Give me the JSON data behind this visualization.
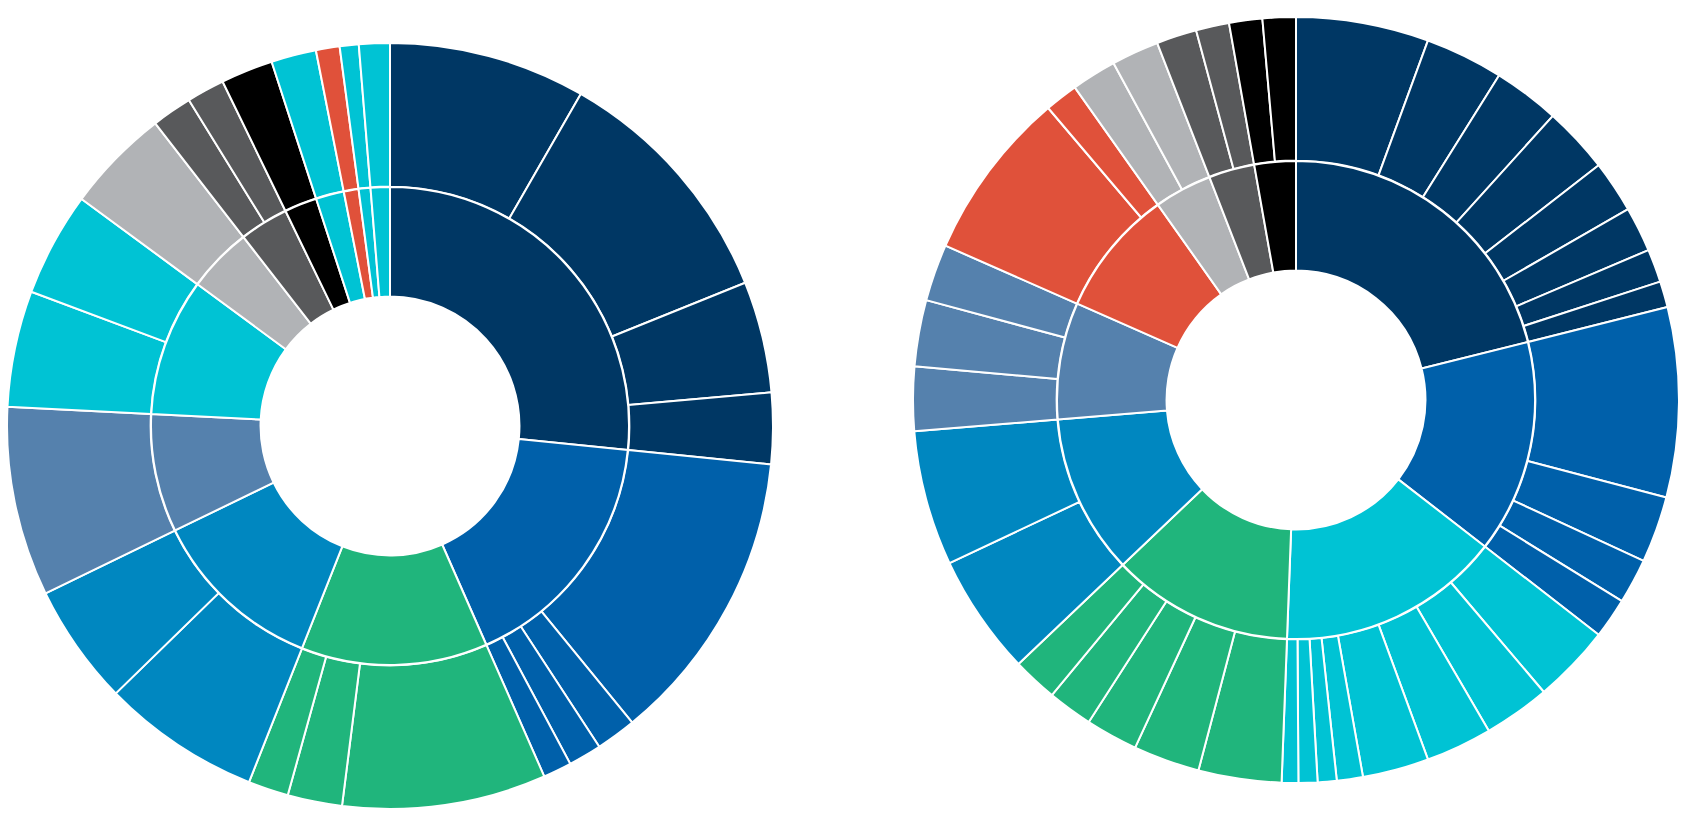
{
  "chart_data": [
    {
      "type": "donut",
      "legend": false,
      "categories": [
        null,
        null,
        null,
        null,
        null,
        null,
        null,
        null,
        null,
        null,
        null,
        null,
        null
      ],
      "values": [
        26.6,
        16.8,
        12.6,
        11.8,
        8.0,
        9.3,
        4.4,
        3.3,
        2.2,
        1.9,
        1.0,
        0.8,
        1.3
      ],
      "colors": [
        "#003764",
        "#0060aa",
        "#20b57c",
        "#0087c0",
        "#5581ad",
        "#00c3d4",
        "#b1b3b6",
        "#58595b",
        "#000000",
        "#00c3d4",
        "#e0513a",
        "#00c3d4",
        "#00c3d4"
      ]
    },
    {
      "type": "donut",
      "legend": false,
      "categories": [
        null,
        null,
        null,
        null,
        null,
        null,
        null,
        null,
        null,
        null,
        null,
        null,
        null,
        null,
        null,
        null,
        null,
        null,
        null,
        null,
        null,
        null,
        null,
        null
      ],
      "values": [
        8.3,
        10.6,
        4.7,
        3.0,
        12.5,
        1.7,
        1.4,
        1.2,
        8.6,
        2.3,
        1.7,
        6.7,
        5.1,
        8.0,
        4.9,
        4.4,
        4.4,
        1.7,
        1.6,
        2.2,
        1.9,
        1.0,
        0.8,
        1.3
      ],
      "colors": [
        "#003764",
        "#003764",
        "#003764",
        "#003764",
        "#0060aa",
        "#0060aa",
        "#0060aa",
        "#0060aa",
        "#20b57c",
        "#20b57c",
        "#20b57c",
        "#0087c0",
        "#0087c0",
        "#5581ad",
        "#00c3d4",
        "#00c3d4",
        "#b1b3b6",
        "#58595b",
        "#58595b",
        "#000000",
        "#00c3d4",
        "#e0513a",
        "#00c3d4",
        "#00c3d4"
      ]
    },
    {
      "type": "donut",
      "legend": false,
      "categories": [
        null,
        null,
        null,
        null,
        null,
        null,
        null,
        null,
        null,
        null
      ],
      "values": [
        21.1,
        14.4,
        15.1,
        12.3,
        10.8,
        7.9,
        8.6,
        3.9,
        3.1,
        2.8
      ],
      "colors": [
        "#003764",
        "#0060aa",
        "#00c3d4",
        "#20b57c",
        "#0087c0",
        "#5581ad",
        "#e0513a",
        "#b1b3b6",
        "#58595b",
        "#000000"
      ]
    },
    {
      "type": "donut",
      "legend": false,
      "categories": [
        null,
        null,
        null,
        null,
        null,
        null,
        null,
        null,
        null,
        null,
        null,
        null,
        null,
        null,
        null,
        null,
        null,
        null,
        null,
        null,
        null,
        null,
        null,
        null,
        null,
        null,
        null,
        null,
        null,
        null,
        null,
        null,
        null,
        null,
        null,
        null,
        null,
        null
      ],
      "values": [
        5.6,
        3.3,
        2.8,
        2.8,
        2.2,
        1.9,
        1.4,
        1.1,
        8.0,
        2.8,
        1.9,
        1.7,
        3.3,
        2.8,
        2.8,
        2.8,
        1.1,
        0.8,
        0.8,
        0.7,
        3.5,
        2.8,
        2.2,
        1.9,
        1.9,
        5.1,
        5.7,
        2.7,
        2.8,
        2.4,
        7.2,
        1.4,
        1.9,
        2.0,
        1.7,
        1.4,
        1.4,
        1.4
      ],
      "colors": [
        "#003764",
        "#003764",
        "#003764",
        "#003764",
        "#003764",
        "#003764",
        "#003764",
        "#003764",
        "#0060aa",
        "#0060aa",
        "#0060aa",
        "#0060aa",
        "#00c3d4",
        "#00c3d4",
        "#00c3d4",
        "#00c3d4",
        "#00c3d4",
        "#00c3d4",
        "#00c3d4",
        "#00c3d4",
        "#20b57c",
        "#20b57c",
        "#20b57c",
        "#20b57c",
        "#20b57c",
        "#0087c0",
        "#0087c0",
        "#5581ad",
        "#5581ad",
        "#5581ad",
        "#e0513a",
        "#e0513a",
        "#b1b3b6",
        "#b1b3b6",
        "#58595b",
        "#58595b",
        "#000000",
        "#000000"
      ]
    }
  ]
}
